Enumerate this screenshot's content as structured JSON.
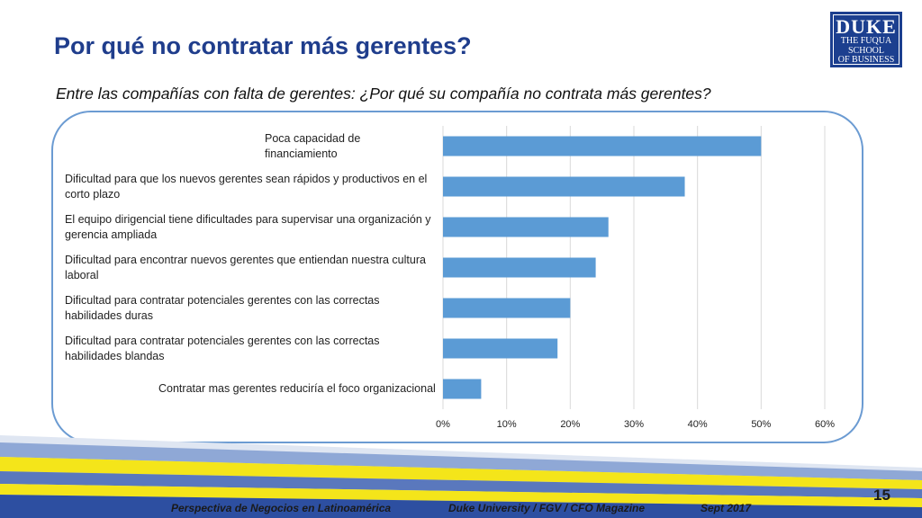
{
  "slide": {
    "title": "Por qué no contratar más gerentes?",
    "subtitle": "Entre las compañías con falta de gerentes: ¿Por qué su compañía no contrata más gerentes?",
    "page_number": "15"
  },
  "logo": {
    "line1": "DUKE",
    "line2": "THE FUQUA",
    "line3": "SCHOOL",
    "line4": "OF BUSINESS"
  },
  "footer": {
    "left": "Perspectiva de Negocios en Latinoamérica",
    "center": "Duke University / FGV / CFO Magazine",
    "right": "Sept 2017"
  },
  "colors": {
    "bar": "#5b9bd5",
    "title": "#1f3d8c",
    "frame": "#6b9bd2"
  },
  "chart_data": {
    "type": "bar",
    "orientation": "horizontal",
    "categories": [
      "Poca capacidad de financiamiento",
      "Dificultad para que los nuevos gerentes sean rápidos y productivos en el corto plazo",
      "El equipo dirigencial tiene dificultades para supervisar una organización y gerencia ampliada",
      "Dificultad para encontrar nuevos gerentes que entiendan nuestra cultura laboral",
      "Dificultad para contratar potenciales gerentes con las correctas habilidades duras",
      "Dificultad para contratar potenciales gerentes con las correctas habilidades blandas",
      "Contratar mas gerentes reduciría el foco organizacional"
    ],
    "values": [
      50,
      38,
      26,
      24,
      20,
      18,
      6
    ],
    "xlim": [
      0,
      60
    ],
    "x_ticks": [
      "0%",
      "10%",
      "20%",
      "30%",
      "40%",
      "50%",
      "60%"
    ],
    "grid": "vertical",
    "xlabel": "",
    "ylabel": ""
  }
}
